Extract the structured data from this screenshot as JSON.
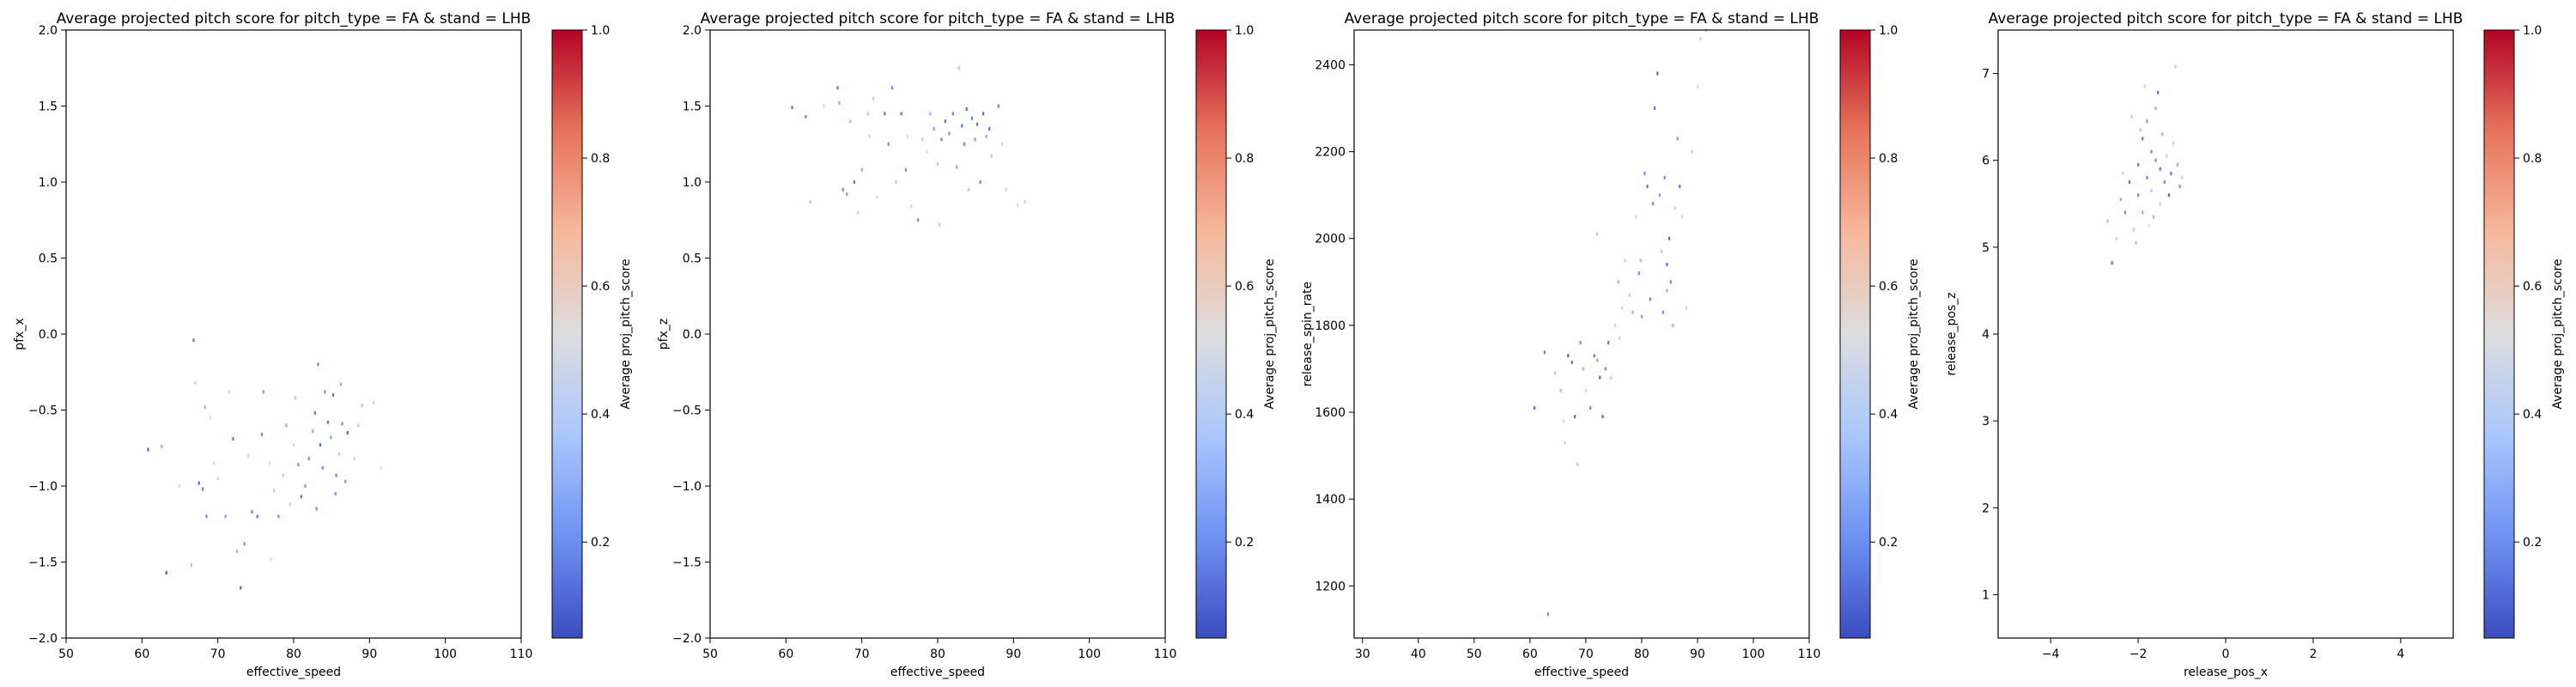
{
  "colorbar": {
    "label": "Average proj_pitch_score",
    "range": [
      0.05,
      1.0
    ],
    "ticks": [
      0.2,
      0.4,
      0.6,
      0.8,
      1.0
    ],
    "tick_labels": [
      "0.2",
      "0.4",
      "0.6",
      "0.8",
      "1.0"
    ],
    "colormap": "coolwarm",
    "colors": [
      "#3b4cc0",
      "#6f92f3",
      "#aac7fd",
      "#dddddd",
      "#f7b89c",
      "#e7745b",
      "#b40426"
    ]
  },
  "chart_data": [
    {
      "type": "heatmap",
      "title": "Average projected pitch score for pitch_type = FA & stand = LHB",
      "xlabel": "effective_speed",
      "ylabel": "pfx_x",
      "xlim": [
        50,
        110
      ],
      "ylim": [
        -2.0,
        2.0
      ],
      "xticks": [
        50,
        60,
        70,
        80,
        90,
        100,
        110
      ],
      "xtick_labels": [
        "50",
        "60",
        "70",
        "80",
        "90",
        "100",
        "110"
      ],
      "yticks": [
        -2.0,
        -1.5,
        -1.0,
        -0.5,
        0.0,
        0.5,
        1.0,
        1.5,
        2.0
      ],
      "ytick_labels": [
        "−2.0",
        "−1.5",
        "−1.0",
        "−0.5",
        "0.0",
        "0.5",
        "1.0",
        "1.5",
        "2.0"
      ],
      "grid": false,
      "points": [
        [
          66.8,
          -0.04,
          0.15
        ],
        [
          67.0,
          -0.32,
          0.4
        ],
        [
          67.5,
          -0.98,
          0.12
        ],
        [
          68.0,
          -1.02,
          0.18
        ],
        [
          68.5,
          -1.2,
          0.2
        ],
        [
          60.8,
          -0.76,
          0.12
        ],
        [
          62.6,
          -0.74,
          0.3
        ],
        [
          63.2,
          -1.57,
          0.1
        ],
        [
          64.9,
          -1.0,
          0.5
        ],
        [
          66.5,
          -1.52,
          0.35
        ],
        [
          68.3,
          -0.48,
          0.3
        ],
        [
          69.0,
          -0.55,
          0.55
        ],
        [
          70.0,
          -0.95,
          0.45
        ],
        [
          71.0,
          -1.2,
          0.25
        ],
        [
          72.0,
          -0.69,
          0.15
        ],
        [
          72.5,
          -1.43,
          0.3
        ],
        [
          73.0,
          -1.67,
          0.12
        ],
        [
          73.5,
          -1.38,
          0.2
        ],
        [
          74.0,
          -0.8,
          0.45
        ],
        [
          74.5,
          -1.17,
          0.18
        ],
        [
          75.2,
          -1.2,
          0.15
        ],
        [
          75.8,
          -0.66,
          0.2
        ],
        [
          76.0,
          -0.38,
          0.25
        ],
        [
          76.8,
          -0.85,
          0.55
        ],
        [
          77.4,
          -1.03,
          0.4
        ],
        [
          78.0,
          -1.2,
          0.22
        ],
        [
          78.6,
          -0.93,
          0.4
        ],
        [
          79.0,
          -0.6,
          0.3
        ],
        [
          79.5,
          -1.12,
          0.45
        ],
        [
          80.0,
          -0.73,
          0.5
        ],
        [
          80.6,
          -0.86,
          0.2
        ],
        [
          81.0,
          -1.07,
          0.15
        ],
        [
          81.5,
          -1.0,
          0.25
        ],
        [
          82.0,
          -0.82,
          0.2
        ],
        [
          82.5,
          -0.64,
          0.3
        ],
        [
          82.8,
          -0.52,
          0.15
        ],
        [
          83.2,
          -0.2,
          0.18
        ],
        [
          83.5,
          -0.73,
          0.12
        ],
        [
          83.8,
          -0.88,
          0.2
        ],
        [
          84.1,
          -0.38,
          0.22
        ],
        [
          84.5,
          -0.58,
          0.15
        ],
        [
          84.9,
          -0.68,
          0.25
        ],
        [
          85.2,
          -0.4,
          0.15
        ],
        [
          85.6,
          -0.93,
          0.18
        ],
        [
          86.0,
          -0.79,
          0.4
        ],
        [
          86.4,
          -0.59,
          0.2
        ],
        [
          86.8,
          -0.97,
          0.25
        ],
        [
          87.1,
          -0.65,
          0.12
        ],
        [
          88.0,
          -0.82,
          0.5
        ],
        [
          88.5,
          -0.6,
          0.45
        ],
        [
          89.0,
          -0.47,
          0.35
        ],
        [
          90.5,
          -0.45,
          0.45
        ],
        [
          91.5,
          -0.88,
          0.5
        ],
        [
          71.5,
          -0.38,
          0.55
        ],
        [
          77.0,
          -1.48,
          0.5
        ],
        [
          69.5,
          -0.85,
          0.6
        ],
        [
          85.5,
          -1.05,
          0.2
        ],
        [
          86.2,
          -0.33,
          0.3
        ],
        [
          83.0,
          -1.15,
          0.2
        ],
        [
          80.2,
          -0.42,
          0.4
        ]
      ]
    },
    {
      "type": "heatmap",
      "title": "Average projected pitch score for pitch_type = FA & stand = LHB",
      "xlabel": "effective_speed",
      "ylabel": "pfx_z",
      "xlim": [
        50,
        110
      ],
      "ylim": [
        -2.0,
        2.0
      ],
      "xticks": [
        50,
        60,
        70,
        80,
        90,
        100,
        110
      ],
      "xtick_labels": [
        "50",
        "60",
        "70",
        "80",
        "90",
        "100",
        "110"
      ],
      "yticks": [
        -2.0,
        -1.5,
        -1.0,
        -0.5,
        0.0,
        0.5,
        1.0,
        1.5,
        2.0
      ],
      "ytick_labels": [
        "−2.0",
        "−1.5",
        "−1.0",
        "−0.5",
        "0.0",
        "0.5",
        "1.0",
        "1.5",
        "2.0"
      ],
      "grid": false,
      "points": [
        [
          60.8,
          1.49,
          0.15
        ],
        [
          62.6,
          1.43,
          0.2
        ],
        [
          63.2,
          0.87,
          0.4
        ],
        [
          66.8,
          1.62,
          0.15
        ],
        [
          67.0,
          1.52,
          0.3
        ],
        [
          67.5,
          0.95,
          0.2
        ],
        [
          68.0,
          0.92,
          0.25
        ],
        [
          68.5,
          1.4,
          0.35
        ],
        [
          69.0,
          1.0,
          0.15
        ],
        [
          69.5,
          0.8,
          0.45
        ],
        [
          70.0,
          1.08,
          0.3
        ],
        [
          70.8,
          1.45,
          0.4
        ],
        [
          71.5,
          1.55,
          0.45
        ],
        [
          72.0,
          0.9,
          0.5
        ],
        [
          73.0,
          1.45,
          0.15
        ],
        [
          73.5,
          1.25,
          0.2
        ],
        [
          74.0,
          1.62,
          0.18
        ],
        [
          74.5,
          1.0,
          0.4
        ],
        [
          75.2,
          1.45,
          0.15
        ],
        [
          75.8,
          1.08,
          0.2
        ],
        [
          76.5,
          0.84,
          0.45
        ],
        [
          77.4,
          0.75,
          0.2
        ],
        [
          78.0,
          1.28,
          0.4
        ],
        [
          78.6,
          1.2,
          0.5
        ],
        [
          79.0,
          1.45,
          0.3
        ],
        [
          79.5,
          1.35,
          0.25
        ],
        [
          80.0,
          1.12,
          0.4
        ],
        [
          80.5,
          1.28,
          0.2
        ],
        [
          81.0,
          1.4,
          0.15
        ],
        [
          81.5,
          1.32,
          0.2
        ],
        [
          82.0,
          1.45,
          0.18
        ],
        [
          82.5,
          1.1,
          0.3
        ],
        [
          82.8,
          1.75,
          0.4
        ],
        [
          83.2,
          1.37,
          0.15
        ],
        [
          83.5,
          1.25,
          0.2
        ],
        [
          83.8,
          1.48,
          0.12
        ],
        [
          84.1,
          0.95,
          0.4
        ],
        [
          84.5,
          1.42,
          0.18
        ],
        [
          84.9,
          1.28,
          0.25
        ],
        [
          85.2,
          1.38,
          0.15
        ],
        [
          85.6,
          1.0,
          0.2
        ],
        [
          86.0,
          1.45,
          0.12
        ],
        [
          86.4,
          1.3,
          0.3
        ],
        [
          86.8,
          1.35,
          0.15
        ],
        [
          87.1,
          1.17,
          0.4
        ],
        [
          88.0,
          1.5,
          0.18
        ],
        [
          88.5,
          1.25,
          0.45
        ],
        [
          89.0,
          0.95,
          0.45
        ],
        [
          90.5,
          0.85,
          0.5
        ],
        [
          91.5,
          0.87,
          0.45
        ],
        [
          71.0,
          1.3,
          0.6
        ],
        [
          76.0,
          1.3,
          0.55
        ],
        [
          65.0,
          1.5,
          0.45
        ],
        [
          80.2,
          0.72,
          0.4
        ]
      ]
    },
    {
      "type": "heatmap",
      "title": "Average projected pitch score for pitch_type = FA & stand = LHB",
      "xlabel": "effective_speed",
      "ylabel": "release_spin_rate",
      "xlim": [
        28.5,
        110
      ],
      "ylim": [
        1080,
        2480
      ],
      "xticks": [
        30,
        40,
        50,
        60,
        70,
        80,
        90,
        100,
        110
      ],
      "xtick_labels": [
        "30",
        "40",
        "50",
        "60",
        "70",
        "80",
        "90",
        "100",
        "110"
      ],
      "yticks": [
        1200,
        1400,
        1600,
        1800,
        2000,
        2200,
        2400
      ],
      "ytick_labels": [
        "1200",
        "1400",
        "1600",
        "1800",
        "2000",
        "2200",
        "2400"
      ],
      "grid": false,
      "points": [
        [
          60.8,
          1610,
          0.15
        ],
        [
          62.6,
          1738,
          0.18
        ],
        [
          63.2,
          1135,
          0.2
        ],
        [
          64.5,
          1690,
          0.4
        ],
        [
          65.5,
          1650,
          0.35
        ],
        [
          66.0,
          1580,
          0.5
        ],
        [
          66.8,
          1730,
          0.12
        ],
        [
          67.5,
          1715,
          0.15
        ],
        [
          68.0,
          1590,
          0.15
        ],
        [
          68.5,
          1480,
          0.4
        ],
        [
          69.0,
          1760,
          0.2
        ],
        [
          69.5,
          1700,
          0.3
        ],
        [
          70.0,
          1650,
          0.45
        ],
        [
          70.8,
          1610,
          0.2
        ],
        [
          71.5,
          1730,
          0.15
        ],
        [
          72.0,
          2010,
          0.4
        ],
        [
          72.5,
          1680,
          0.12
        ],
        [
          73.0,
          1590,
          0.15
        ],
        [
          73.5,
          1700,
          0.2
        ],
        [
          74.0,
          1760,
          0.15
        ],
        [
          74.5,
          1680,
          0.4
        ],
        [
          75.2,
          1800,
          0.45
        ],
        [
          75.8,
          1900,
          0.3
        ],
        [
          76.5,
          1840,
          0.5
        ],
        [
          77.0,
          1950,
          0.45
        ],
        [
          77.8,
          1870,
          0.4
        ],
        [
          78.4,
          1830,
          0.3
        ],
        [
          79.0,
          2050,
          0.45
        ],
        [
          79.5,
          1920,
          0.2
        ],
        [
          80.0,
          1820,
          0.25
        ],
        [
          80.5,
          2150,
          0.2
        ],
        [
          81.0,
          2120,
          0.15
        ],
        [
          81.5,
          1860,
          0.18
        ],
        [
          82.0,
          2080,
          0.2
        ],
        [
          82.3,
          2300,
          0.15
        ],
        [
          82.8,
          2380,
          0.12
        ],
        [
          83.2,
          2100,
          0.25
        ],
        [
          83.5,
          1970,
          0.4
        ],
        [
          83.8,
          1830,
          0.2
        ],
        [
          84.1,
          2140,
          0.18
        ],
        [
          84.5,
          1940,
          0.15
        ],
        [
          84.9,
          2000,
          0.12
        ],
        [
          85.2,
          1900,
          0.2
        ],
        [
          85.6,
          1800,
          0.3
        ],
        [
          86.0,
          2070,
          0.4
        ],
        [
          86.4,
          2230,
          0.2
        ],
        [
          86.8,
          2120,
          0.15
        ],
        [
          87.2,
          2050,
          0.45
        ],
        [
          88.0,
          1840,
          0.5
        ],
        [
          89.0,
          2200,
          0.4
        ],
        [
          90.5,
          2460,
          0.45
        ],
        [
          91.5,
          2480,
          0.4
        ],
        [
          90.0,
          2350,
          0.5
        ],
        [
          72.0,
          1720,
          0.75
        ],
        [
          76.0,
          1770,
          0.6
        ],
        [
          79.8,
          1950,
          0.35
        ],
        [
          84.5,
          1880,
          0.3
        ],
        [
          66.2,
          1530,
          0.45
        ]
      ]
    },
    {
      "type": "heatmap",
      "title": "Average projected pitch score for pitch_type = FA & stand = LHB",
      "xlabel": "release_pos_x",
      "ylabel": "release_pos_z",
      "xlim": [
        -5.2,
        5.2
      ],
      "ylim": [
        0.5,
        7.5
      ],
      "xticks": [
        -4,
        -2,
        0,
        2,
        4
      ],
      "xtick_labels": [
        "−4",
        "−2",
        "0",
        "2",
        "4"
      ],
      "yticks": [
        1,
        2,
        3,
        4,
        5,
        6,
        7
      ],
      "ytick_labels": [
        "1",
        "2",
        "3",
        "4",
        "5",
        "6",
        "7"
      ],
      "grid": false,
      "points": [
        [
          -2.6,
          4.82,
          0.15
        ],
        [
          -2.7,
          5.3,
          0.35
        ],
        [
          -2.5,
          5.1,
          0.45
        ],
        [
          -2.4,
          5.55,
          0.3
        ],
        [
          -2.3,
          5.4,
          0.2
        ],
        [
          -2.2,
          5.75,
          0.15
        ],
        [
          -2.1,
          5.2,
          0.4
        ],
        [
          -2.0,
          5.95,
          0.15
        ],
        [
          -2.0,
          5.6,
          0.2
        ],
        [
          -1.9,
          5.4,
          0.3
        ],
        [
          -1.9,
          6.25,
          0.15
        ],
        [
          -1.8,
          5.8,
          0.2
        ],
        [
          -1.8,
          6.45,
          0.25
        ],
        [
          -1.7,
          6.1,
          0.18
        ],
        [
          -1.7,
          5.65,
          0.4
        ],
        [
          -1.6,
          6.6,
          0.3
        ],
        [
          -1.6,
          6.0,
          0.2
        ],
        [
          -1.55,
          6.78,
          0.15
        ],
        [
          -1.5,
          5.5,
          0.45
        ],
        [
          -1.5,
          5.9,
          0.15
        ],
        [
          -1.45,
          6.3,
          0.3
        ],
        [
          -1.4,
          5.75,
          0.2
        ],
        [
          -1.35,
          6.05,
          0.4
        ],
        [
          -1.3,
          5.6,
          0.12
        ],
        [
          -1.25,
          5.85,
          0.15
        ],
        [
          -1.2,
          6.2,
          0.45
        ],
        [
          -1.15,
          7.08,
          0.4
        ],
        [
          -1.1,
          5.95,
          0.3
        ],
        [
          -1.05,
          5.7,
          0.2
        ],
        [
          -1.0,
          5.8,
          0.45
        ],
        [
          -2.15,
          6.5,
          0.4
        ],
        [
          -1.95,
          6.35,
          0.35
        ],
        [
          -1.75,
          5.25,
          0.5
        ],
        [
          -2.35,
          5.85,
          0.45
        ],
        [
          -1.65,
          5.35,
          0.3
        ],
        [
          -2.05,
          5.05,
          0.35
        ],
        [
          -1.85,
          6.85,
          0.45
        ]
      ]
    }
  ]
}
